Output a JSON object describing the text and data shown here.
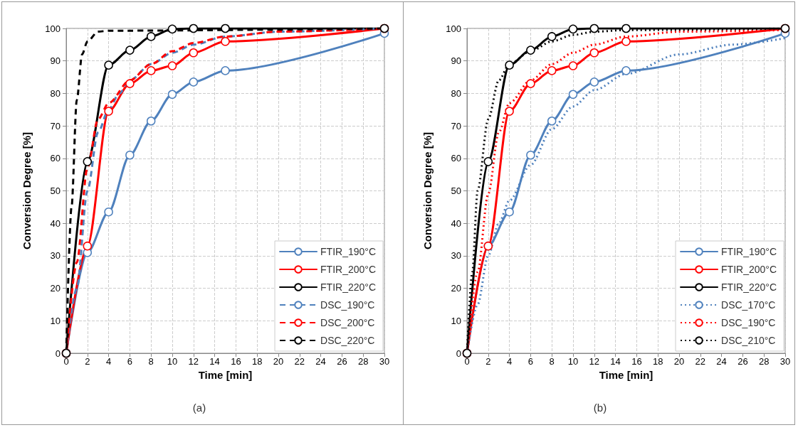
{
  "chart_data": [
    {
      "type": "line",
      "xlabel": "Time [min]",
      "ylabel": "Conversion Degree [%]",
      "annotations": [
        "(a)"
      ],
      "xlim": [
        0,
        30
      ],
      "xticks": [
        0,
        2,
        4,
        6,
        8,
        10,
        12,
        14,
        16,
        18,
        20,
        22,
        24,
        26,
        28,
        30
      ],
      "ylim": [
        0,
        100
      ],
      "yticks": [
        0,
        10,
        20,
        30,
        40,
        50,
        60,
        70,
        80,
        90,
        100
      ],
      "grid": true,
      "legend": "bottom right",
      "series": [
        {
          "name": "FTIR_190°C",
          "color": "#4f81bd",
          "marker": "circle",
          "line_style": "solid",
          "x": [
            0,
            2,
            4,
            6,
            8,
            10,
            12,
            15,
            30
          ],
          "values": [
            0,
            31,
            43.5,
            61,
            71.5,
            79.7,
            83.5,
            87,
            98.5
          ]
        },
        {
          "name": "FTIR_200°C",
          "color": "#ff0000",
          "marker": "circle",
          "line_style": "solid",
          "x": [
            0,
            2,
            4,
            6,
            8,
            10,
            12,
            15,
            30
          ],
          "values": [
            0,
            33,
            74.5,
            83,
            87,
            88.5,
            92.5,
            96,
            100
          ]
        },
        {
          "name": "FTIR_220°C",
          "color": "#000000",
          "marker": "circle",
          "line_style": "solid",
          "x": [
            0,
            2,
            4,
            6,
            8,
            10,
            12,
            15,
            30
          ],
          "values": [
            0,
            59,
            88.7,
            93.3,
            97.5,
            99.8,
            100,
            100,
            100
          ]
        },
        {
          "name": "DSC_190°C",
          "color": "#4f81bd",
          "marker": "none",
          "line_style": "dashed",
          "x": [
            0,
            1,
            2,
            3,
            4,
            5,
            6,
            8,
            10,
            12,
            15,
            20,
            30
          ],
          "values": [
            0,
            20,
            50,
            68,
            75,
            80,
            84,
            89,
            92.5,
            95,
            97.5,
            99,
            100
          ]
        },
        {
          "name": "DSC_200°C",
          "color": "#ff0000",
          "marker": "none",
          "line_style": "dashed",
          "x": [
            0,
            1,
            2,
            3,
            4,
            6,
            8,
            10,
            12,
            15,
            20,
            30
          ],
          "values": [
            0,
            28,
            57,
            72,
            77,
            84,
            89,
            93,
            95.5,
            97.5,
            99,
            100
          ]
        },
        {
          "name": "DSC_220°C",
          "color": "#000000",
          "marker": "none",
          "line_style": "dashed",
          "x": [
            0,
            0.5,
            1,
            1.5,
            2,
            3,
            4,
            30
          ],
          "values": [
            0,
            45,
            78,
            92,
            96,
            99,
            99.3,
            100
          ]
        }
      ]
    },
    {
      "type": "line",
      "xlabel": "Time [min]",
      "ylabel": "Conversion Degree [%]",
      "annotations": [
        "(b)"
      ],
      "xlim": [
        0,
        30
      ],
      "xticks": [
        0,
        2,
        4,
        6,
        8,
        10,
        12,
        14,
        16,
        18,
        20,
        22,
        24,
        26,
        28,
        30
      ],
      "ylim": [
        0,
        100
      ],
      "yticks": [
        0,
        10,
        20,
        30,
        40,
        50,
        60,
        70,
        80,
        90,
        100
      ],
      "grid": true,
      "legend": "bottom right",
      "series": [
        {
          "name": "FTIR_190°C",
          "color": "#4f81bd",
          "marker": "circle",
          "line_style": "solid",
          "x": [
            0,
            2,
            4,
            6,
            8,
            10,
            12,
            15,
            30
          ],
          "values": [
            0,
            33,
            43.5,
            61,
            71.5,
            79.7,
            83.5,
            87,
            98.5
          ]
        },
        {
          "name": "FTIR_200°C",
          "color": "#ff0000",
          "marker": "circle",
          "line_style": "solid",
          "x": [
            0,
            2,
            4,
            6,
            8,
            10,
            12,
            15,
            30
          ],
          "values": [
            0,
            33,
            74.5,
            83,
            87,
            88.5,
            92.5,
            96,
            100
          ]
        },
        {
          "name": "FTIR_220°C",
          "color": "#000000",
          "marker": "circle",
          "line_style": "solid",
          "x": [
            0,
            2,
            4,
            6,
            8,
            10,
            12,
            15,
            30
          ],
          "values": [
            0,
            59,
            88.7,
            93.3,
            97.5,
            99.8,
            100,
            100,
            100
          ]
        },
        {
          "name": "DSC_170°C",
          "color": "#4f81bd",
          "marker": "none",
          "line_style": "dotted",
          "x": [
            0,
            1,
            2,
            3,
            4,
            6,
            8,
            10,
            12,
            15,
            20,
            25,
            30
          ],
          "values": [
            0,
            15,
            30,
            40,
            47,
            58,
            69,
            76,
            81,
            86,
            92,
            95,
            97
          ]
        },
        {
          "name": "DSC_190°C",
          "color": "#ff0000",
          "marker": "none",
          "line_style": "dotted",
          "x": [
            0,
            1,
            2,
            3,
            4,
            6,
            8,
            10,
            12,
            15,
            20,
            30
          ],
          "values": [
            0,
            25,
            49,
            68,
            77,
            84,
            89,
            92.5,
            95,
            97.5,
            99,
            99.5
          ]
        },
        {
          "name": "DSC_210°C",
          "color": "#000000",
          "marker": "none",
          "line_style": "dotted",
          "x": [
            0,
            0.5,
            1,
            2,
            3,
            4,
            6,
            8,
            10,
            12,
            15,
            30
          ],
          "values": [
            0,
            25,
            50,
            72,
            84,
            89,
            93,
            96,
            98,
            99,
            99.5,
            100
          ]
        }
      ]
    }
  ]
}
